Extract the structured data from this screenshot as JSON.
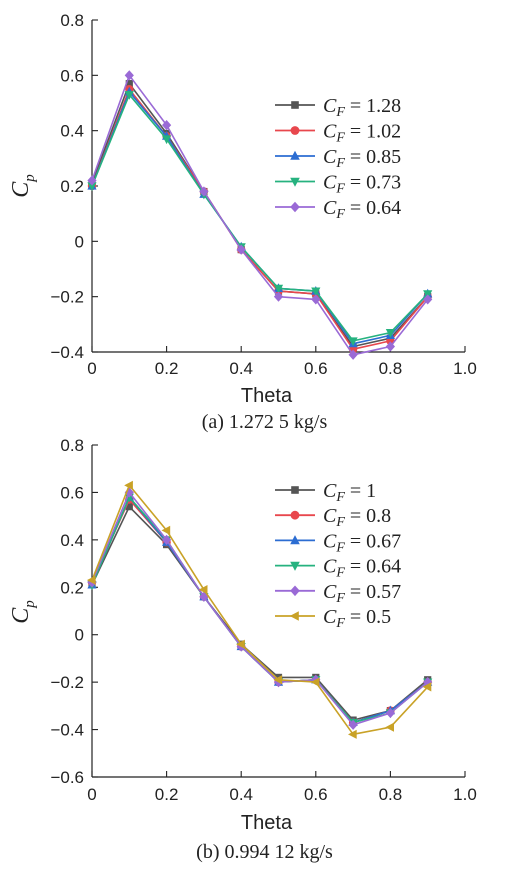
{
  "chart_data": [
    {
      "type": "line",
      "caption": "(a) 1.272 5 kg/s",
      "xlabel": "Theta",
      "ylabel_main": "C",
      "ylabel_sub": "p",
      "xlim": [
        0,
        1.0
      ],
      "ylim": [
        -0.4,
        0.8
      ],
      "xticks": [
        0,
        0.2,
        0.4,
        0.6,
        0.8,
        1.0
      ],
      "xtick_labels": [
        "0",
        "0.2",
        "0.4",
        "0.6",
        "0.8",
        "1.0"
      ],
      "yticks": [
        -0.4,
        -0.2,
        0,
        0.2,
        0.4,
        0.6,
        0.8
      ],
      "ytick_labels": [
        "−0.4",
        "−0.2",
        "0",
        "0.2",
        "0.4",
        "0.6",
        "0.8"
      ],
      "legend_position": "right",
      "x": [
        0,
        0.1,
        0.2,
        0.3,
        0.4,
        0.5,
        0.6,
        0.7,
        0.8,
        0.9
      ],
      "series": [
        {
          "label_main": "C",
          "label_sub": "F",
          "label_value": " = 1.28",
          "color": "#555555",
          "marker": "square",
          "values": [
            0.21,
            0.57,
            0.39,
            0.18,
            -0.03,
            -0.18,
            -0.19,
            -0.38,
            -0.35,
            -0.2
          ]
        },
        {
          "label_main": "C",
          "label_sub": "F",
          "label_value": " = 1.02",
          "color": "#e8474d",
          "marker": "circle",
          "values": [
            0.2,
            0.55,
            0.38,
            0.18,
            -0.03,
            -0.18,
            -0.19,
            -0.39,
            -0.36,
            -0.2
          ]
        },
        {
          "label_main": "C",
          "label_sub": "F",
          "label_value": " = 0.85",
          "color": "#2c6dd2",
          "marker": "triangle-up",
          "values": [
            0.2,
            0.54,
            0.38,
            0.17,
            -0.02,
            -0.17,
            -0.18,
            -0.37,
            -0.34,
            -0.19
          ]
        },
        {
          "label_main": "C",
          "label_sub": "F",
          "label_value": " = 0.73",
          "color": "#26b27f",
          "marker": "triangle-down",
          "values": [
            0.2,
            0.53,
            0.37,
            0.17,
            -0.02,
            -0.17,
            -0.18,
            -0.36,
            -0.33,
            -0.19
          ]
        },
        {
          "label_main": "C",
          "label_sub": "F",
          "label_value": " = 0.64",
          "color": "#9a6ad6",
          "marker": "diamond",
          "values": [
            0.22,
            0.6,
            0.42,
            0.18,
            -0.03,
            -0.2,
            -0.21,
            -0.41,
            -0.38,
            -0.21
          ]
        }
      ]
    },
    {
      "type": "line",
      "caption": "(b) 0.994 12 kg/s",
      "xlabel": "Theta",
      "ylabel_main": "C",
      "ylabel_sub": "p",
      "xlim": [
        0,
        1.0
      ],
      "ylim": [
        -0.6,
        0.8
      ],
      "xticks": [
        0,
        0.2,
        0.4,
        0.6,
        0.8,
        1.0
      ],
      "xtick_labels": [
        "0",
        "0.2",
        "0.4",
        "0.6",
        "0.8",
        "1.0"
      ],
      "yticks": [
        -0.6,
        -0.4,
        -0.2,
        0,
        0.2,
        0.4,
        0.6,
        0.8
      ],
      "ytick_labels": [
        "−0.6",
        "−0.4",
        "−0.2",
        "0",
        "0.2",
        "0.4",
        "0.6",
        "0.8"
      ],
      "legend_position": "right",
      "x": [
        0,
        0.1,
        0.2,
        0.3,
        0.4,
        0.5,
        0.6,
        0.7,
        0.8,
        0.9
      ],
      "series": [
        {
          "label_main": "C",
          "label_sub": "F",
          "label_value": " = 1",
          "color": "#555555",
          "marker": "square",
          "values": [
            0.21,
            0.54,
            0.38,
            0.16,
            -0.04,
            -0.18,
            -0.18,
            -0.36,
            -0.32,
            -0.19
          ]
        },
        {
          "label_main": "C",
          "label_sub": "F",
          "label_value": " = 0.8",
          "color": "#e8474d",
          "marker": "circle",
          "values": [
            0.22,
            0.57,
            0.39,
            0.16,
            -0.05,
            -0.2,
            -0.19,
            -0.37,
            -0.32,
            -0.2
          ]
        },
        {
          "label_main": "C",
          "label_sub": "F",
          "label_value": " = 0.67",
          "color": "#2c6dd2",
          "marker": "triangle-up",
          "values": [
            0.21,
            0.58,
            0.39,
            0.16,
            -0.05,
            -0.2,
            -0.19,
            -0.37,
            -0.32,
            -0.2
          ]
        },
        {
          "label_main": "C",
          "label_sub": "F",
          "label_value": " = 0.64",
          "color": "#26b27f",
          "marker": "triangle-down",
          "values": [
            0.21,
            0.58,
            0.4,
            0.16,
            -0.05,
            -0.2,
            -0.19,
            -0.37,
            -0.33,
            -0.2
          ]
        },
        {
          "label_main": "C",
          "label_sub": "F",
          "label_value": " = 0.57",
          "color": "#9a6ad6",
          "marker": "diamond",
          "values": [
            0.22,
            0.6,
            0.4,
            0.16,
            -0.05,
            -0.2,
            -0.19,
            -0.38,
            -0.33,
            -0.2
          ]
        },
        {
          "label_main": "C",
          "label_sub": "F",
          "label_value": " = 0.5",
          "color": "#c9a227",
          "marker": "triangle-left",
          "values": [
            0.23,
            0.63,
            0.44,
            0.19,
            -0.04,
            -0.19,
            -0.2,
            -0.42,
            -0.39,
            -0.22
          ]
        }
      ]
    }
  ]
}
